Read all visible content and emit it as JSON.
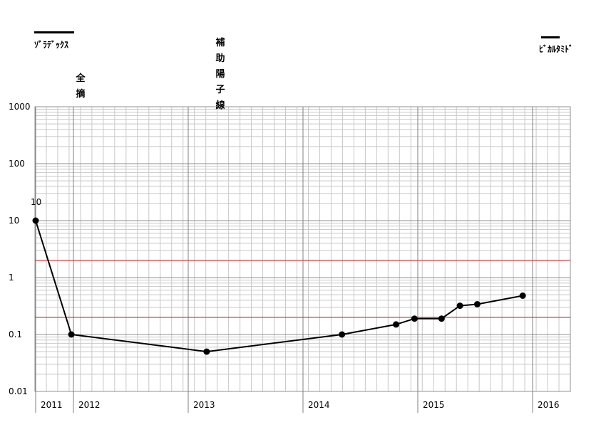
{
  "chart_data": {
    "type": "line",
    "y_scale": "log",
    "ylim": [
      0.01,
      1000
    ],
    "y_ticks": [
      "0.01",
      "0.1",
      "1",
      "10",
      "100",
      "1000"
    ],
    "x_tick_labels": [
      "2011",
      "2012",
      "2013",
      "2014",
      "2015",
      "2016"
    ],
    "x_range": [
      2011.0,
      2015.67
    ],
    "grid": true,
    "series": [
      {
        "color": "#000000",
        "points": [
          {
            "x": 2011.0,
            "y": 10
          },
          {
            "x": 2011.33,
            "y": 0.1
          },
          {
            "x": 2012.58,
            "y": 0.05
          },
          {
            "x": 2013.83,
            "y": 0.1
          },
          {
            "x": 2014.33,
            "y": 0.15
          },
          {
            "x": 2014.5,
            "y": 0.19
          },
          {
            "x": 2014.75,
            "y": 0.19
          },
          {
            "x": 2014.92,
            "y": 0.32
          },
          {
            "x": 2015.08,
            "y": 0.34
          },
          {
            "x": 2015.5,
            "y": 0.48
          }
        ],
        "point_labels": [
          {
            "index": 0,
            "text": "10"
          }
        ]
      }
    ],
    "reference_lines": [
      {
        "y": 2,
        "color": "#cc3333"
      },
      {
        "y": 0.2,
        "color": "#cc3333"
      }
    ],
    "annotations": {
      "legend_left": "ｿﾞﾗﾃﾞｯｸｽ",
      "legend_right": "ﾋﾞｶﾙﾀﾐﾄﾞ",
      "event_1": "全\n摘",
      "event_2": "補\n助\n陽\n子\n線"
    }
  }
}
